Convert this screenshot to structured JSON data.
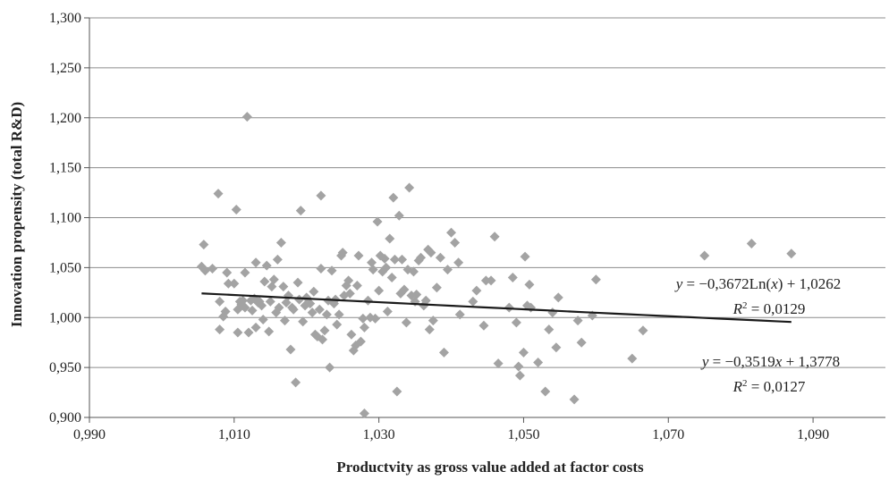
{
  "chart_data": {
    "type": "scatter",
    "xlabel": "Productvity as gross value added at factor costs",
    "ylabel": "Innovation propensity (total R&D)",
    "xlim": [
      0.99,
      1.1
    ],
    "ylim": [
      0.9,
      1.3
    ],
    "x_ticks": [
      "0,990",
      "1,010",
      "1,030",
      "1,050",
      "1,070",
      "1,090"
    ],
    "x_tick_values": [
      0.99,
      1.01,
      1.03,
      1.05,
      1.07,
      1.09
    ],
    "y_ticks": [
      "0,900",
      "0,950",
      "1,000",
      "1,050",
      "1,100",
      "1,150",
      "1,200",
      "1,250",
      "1,300"
    ],
    "y_tick_values": [
      0.9,
      0.95,
      1.0,
      1.05,
      1.1,
      1.15,
      1.2,
      1.25,
      1.3
    ],
    "grid": "horizontal",
    "marker": "diamond",
    "marker_color": "#a3a3a3",
    "trendline_color": "#1a1a1a",
    "trendline": {
      "type": "logarithmic",
      "a": -0.3672,
      "b": 1.0262,
      "x_range": [
        1.0055,
        1.087
      ]
    },
    "annotations": [
      {
        "italic_var": "y",
        "text": " = −0,3672Ln(",
        "italic_var2": "x",
        "text2": ") + 1,0262"
      },
      {
        "prefix": "R",
        "sup": "2",
        "text": " = 0,0129"
      },
      {
        "italic_var": "y",
        "text": " = −0,3519",
        "italic_var2": "x",
        "text2": " + 1,3778"
      },
      {
        "prefix": "R",
        "sup": "2",
        "text": " = 0,0127"
      }
    ],
    "points": [
      [
        1.0055,
        1.051
      ],
      [
        1.0058,
        1.073
      ],
      [
        1.006,
        1.047
      ],
      [
        1.007,
        1.049
      ],
      [
        1.0078,
        1.124
      ],
      [
        1.008,
        1.016
      ],
      [
        1.008,
        0.988
      ],
      [
        1.0085,
        1.001
      ],
      [
        1.0088,
        1.006
      ],
      [
        1.009,
        1.045
      ],
      [
        1.0092,
        1.034
      ],
      [
        1.01,
        1.034
      ],
      [
        1.0103,
        1.108
      ],
      [
        1.0105,
        0.985
      ],
      [
        1.0105,
        1.008
      ],
      [
        1.0108,
        1.016
      ],
      [
        1.011,
        1.013
      ],
      [
        1.0112,
        1.017
      ],
      [
        1.0115,
        1.01
      ],
      [
        1.0115,
        1.045
      ],
      [
        1.0118,
        1.201
      ],
      [
        1.012,
        0.985
      ],
      [
        1.0123,
        1.017
      ],
      [
        1.0125,
        1.007
      ],
      [
        1.0128,
        1.019
      ],
      [
        1.013,
        1.055
      ],
      [
        1.013,
        0.99
      ],
      [
        1.0133,
        1.015
      ],
      [
        1.0135,
        1.016
      ],
      [
        1.0138,
        1.012
      ],
      [
        1.014,
        0.998
      ],
      [
        1.0142,
        1.036
      ],
      [
        1.0145,
        1.052
      ],
      [
        1.0148,
        0.986
      ],
      [
        1.015,
        1.016
      ],
      [
        1.0152,
        1.031
      ],
      [
        1.0155,
        1.038
      ],
      [
        1.0158,
        1.005
      ],
      [
        1.016,
        1.058
      ],
      [
        1.0162,
        1.01
      ],
      [
        1.0165,
        1.075
      ],
      [
        1.0168,
        1.031
      ],
      [
        1.017,
        0.997
      ],
      [
        1.0172,
        1.015
      ],
      [
        1.0175,
        1.022
      ],
      [
        1.0178,
        0.968
      ],
      [
        1.018,
        1.01
      ],
      [
        1.0182,
        1.008
      ],
      [
        1.0185,
        0.935
      ],
      [
        1.0188,
        1.035
      ],
      [
        1.019,
        1.018
      ],
      [
        1.0192,
        1.107
      ],
      [
        1.0195,
        0.996
      ],
      [
        1.0198,
        1.012
      ],
      [
        1.02,
        1.02
      ],
      [
        1.0205,
        1.014
      ],
      [
        1.0208,
        1.005
      ],
      [
        1.021,
        1.026
      ],
      [
        1.0212,
        0.983
      ],
      [
        1.0215,
        0.981
      ],
      [
        1.0218,
        1.008
      ],
      [
        1.022,
        1.049
      ],
      [
        1.022,
        1.122
      ],
      [
        1.0222,
        0.978
      ],
      [
        1.0225,
        0.987
      ],
      [
        1.0228,
        1.003
      ],
      [
        1.023,
        1.017
      ],
      [
        1.0232,
        0.95
      ],
      [
        1.0235,
        1.047
      ],
      [
        1.0238,
        1.014
      ],
      [
        1.024,
        1.018
      ],
      [
        1.0242,
        0.993
      ],
      [
        1.0245,
        1.003
      ],
      [
        1.0248,
        1.062
      ],
      [
        1.025,
        1.065
      ],
      [
        1.0252,
        1.022
      ],
      [
        1.0255,
        1.032
      ],
      [
        1.0258,
        1.037
      ],
      [
        1.026,
        1.024
      ],
      [
        1.0262,
        0.983
      ],
      [
        1.0265,
        0.967
      ],
      [
        1.0268,
        0.972
      ],
      [
        1.027,
        1.032
      ],
      [
        1.0272,
        1.062
      ],
      [
        1.0275,
        0.976
      ],
      [
        1.0278,
        0.999
      ],
      [
        1.028,
        0.99
      ],
      [
        1.028,
        0.904
      ],
      [
        1.0285,
        1.017
      ],
      [
        1.0288,
        1.0
      ],
      [
        1.029,
        1.055
      ],
      [
        1.0292,
        1.048
      ],
      [
        1.0295,
        0.999
      ],
      [
        1.0298,
        1.096
      ],
      [
        1.03,
        1.027
      ],
      [
        1.0302,
        1.062
      ],
      [
        1.0305,
        1.046
      ],
      [
        1.0308,
        1.059
      ],
      [
        1.031,
        1.05
      ],
      [
        1.0312,
        1.006
      ],
      [
        1.0315,
        1.079
      ],
      [
        1.0318,
        1.04
      ],
      [
        1.032,
        1.12
      ],
      [
        1.0322,
        1.058
      ],
      [
        1.0325,
        0.926
      ],
      [
        1.0328,
        1.102
      ],
      [
        1.033,
        1.024
      ],
      [
        1.0332,
        1.058
      ],
      [
        1.0335,
        1.028
      ],
      [
        1.0338,
        0.995
      ],
      [
        1.034,
        1.048
      ],
      [
        1.0342,
        1.13
      ],
      [
        1.0345,
        1.022
      ],
      [
        1.0348,
        1.046
      ],
      [
        1.035,
        1.016
      ],
      [
        1.0352,
        1.023
      ],
      [
        1.0355,
        1.057
      ],
      [
        1.0358,
        1.06
      ],
      [
        1.0362,
        1.012
      ],
      [
        1.0365,
        1.017
      ],
      [
        1.0368,
        1.068
      ],
      [
        1.037,
        0.988
      ],
      [
        1.0372,
        1.065
      ],
      [
        1.0375,
        0.997
      ],
      [
        1.038,
        1.03
      ],
      [
        1.0385,
        1.06
      ],
      [
        1.039,
        0.965
      ],
      [
        1.0395,
        1.048
      ],
      [
        1.04,
        1.085
      ],
      [
        1.0405,
        1.075
      ],
      [
        1.041,
        1.055
      ],
      [
        1.0412,
        1.003
      ],
      [
        1.043,
        1.016
      ],
      [
        1.0435,
        1.027
      ],
      [
        1.0445,
        0.992
      ],
      [
        1.0448,
        1.037
      ],
      [
        1.0455,
        1.037
      ],
      [
        1.046,
        1.081
      ],
      [
        1.0465,
        0.954
      ],
      [
        1.048,
        1.01
      ],
      [
        1.0485,
        1.04
      ],
      [
        1.049,
        0.995
      ],
      [
        1.0493,
        0.951
      ],
      [
        1.0495,
        0.942
      ],
      [
        1.05,
        0.965
      ],
      [
        1.0502,
        1.061
      ],
      [
        1.0505,
        1.012
      ],
      [
        1.0508,
        1.033
      ],
      [
        1.051,
        1.01
      ],
      [
        1.052,
        0.955
      ],
      [
        1.053,
        0.926
      ],
      [
        1.0535,
        0.988
      ],
      [
        1.054,
        1.005
      ],
      [
        1.0545,
        0.97
      ],
      [
        1.0548,
        1.02
      ],
      [
        1.057,
        0.918
      ],
      [
        1.0575,
        0.997
      ],
      [
        1.058,
        0.975
      ],
      [
        1.0595,
        1.002
      ],
      [
        1.06,
        1.038
      ],
      [
        1.065,
        0.959
      ],
      [
        1.0665,
        0.987
      ],
      [
        1.075,
        1.062
      ],
      [
        1.0815,
        1.074
      ],
      [
        1.087,
        1.064
      ]
    ]
  }
}
